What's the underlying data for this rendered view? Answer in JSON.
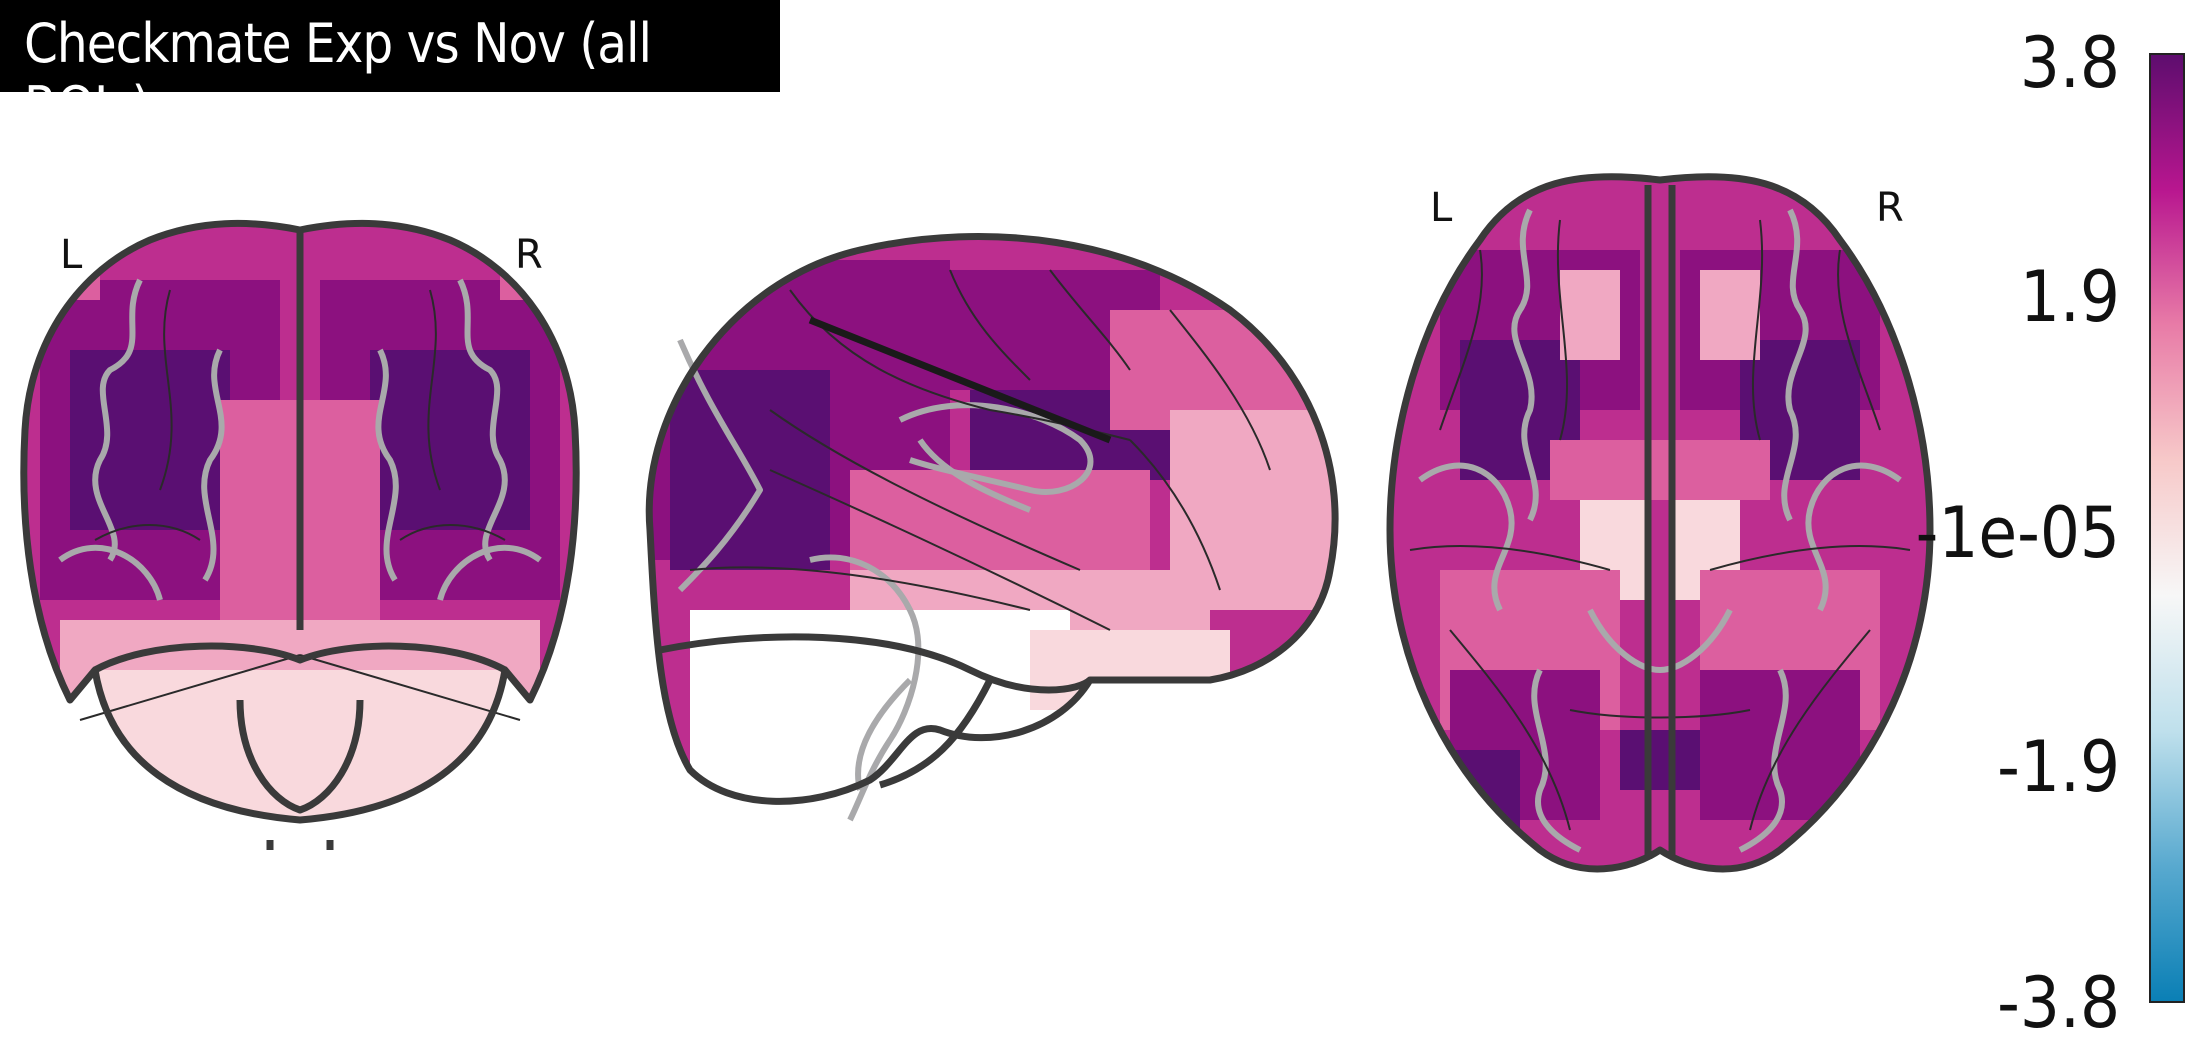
{
  "title": "Checkmate Exp vs Nov (all ROIs)",
  "views": {
    "coronal": {
      "left_label": "L",
      "right_label": "R"
    },
    "axial": {
      "left_label": "L",
      "right_label": "R"
    }
  },
  "colorbar": {
    "ticks": [
      "3.8",
      "1.9",
      "-1e-05",
      "-1.9",
      "-3.8"
    ],
    "max": 3.8,
    "min": -3.8,
    "colors": [
      "#0a7fb5",
      "#58a9cf",
      "#bfe0ec",
      "#f7f7f7",
      "#f7c9c9",
      "#e87ba7",
      "#b8168f",
      "#5d0d6e"
    ]
  },
  "palette": {
    "dark": "#5a0f72",
    "purple": "#8c117f",
    "magenta": "#bd2e8f",
    "pink": "#dc5f9f",
    "light_pink": "#f0a8c2",
    "pale": "#f9d9dd",
    "outline": "#3a3a3a",
    "gyri": "#a9a9ab"
  }
}
